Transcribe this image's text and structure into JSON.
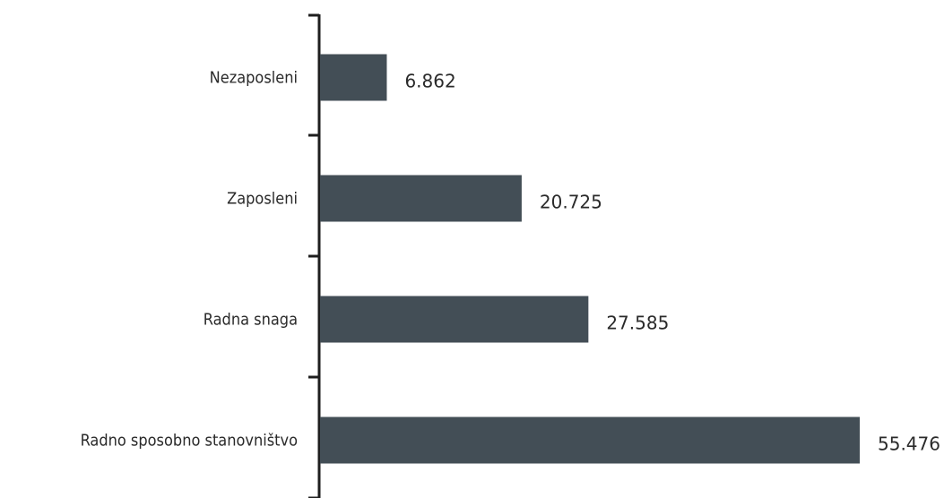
{
  "chart_data": {
    "type": "bar",
    "orientation": "horizontal",
    "categories": [
      "Nezaposleni",
      "Zaposleni",
      "Radna snaga",
      "Radno sposobno stanovništvo"
    ],
    "values": [
      6862,
      20725,
      27585,
      55476
    ],
    "value_labels": [
      "6.862",
      "20.725",
      "27.585",
      "55.476"
    ],
    "bar_color": "#434e56",
    "axis_color": "#1e1e1e",
    "grid": false,
    "legend": "none",
    "xlim": [
      0,
      58000
    ]
  }
}
